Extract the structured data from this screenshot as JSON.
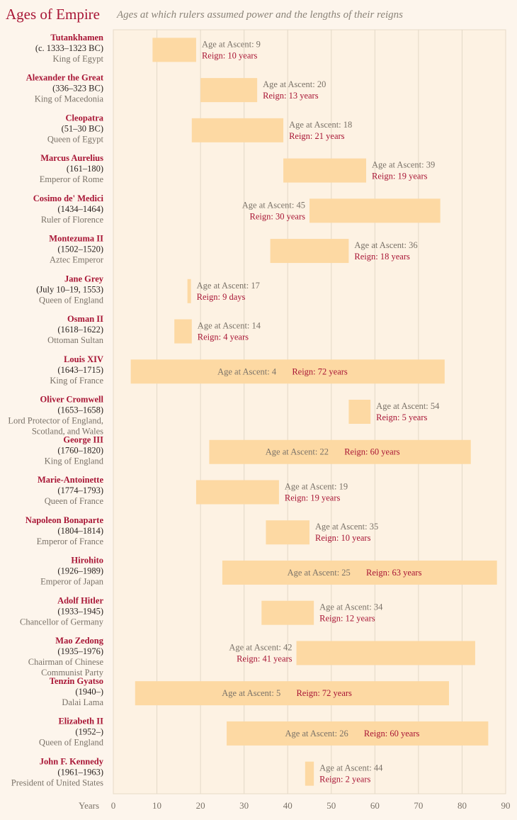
{
  "title": "Ages of Empire",
  "subtitle": "Ages at which rulers assumed power and the lengths of their reigns",
  "chart_data": {
    "type": "bar",
    "orientation": "horizontal-floating",
    "xlabel": "Years",
    "xlim": [
      0,
      90
    ],
    "xticks": [
      "0",
      "10",
      "20",
      "30",
      "40",
      "50",
      "60",
      "70",
      "80",
      "90"
    ],
    "grid": true,
    "bar_color": "#fdd9a3",
    "name_color": "#a81535",
    "series": [
      {
        "name": "Tutankhamen",
        "dates": "(c. 1333–1323 BC)",
        "role": "King of Egypt",
        "ascent": 9,
        "reign": 10,
        "ascent_text": "Age at Ascent: 9",
        "reign_text": "Reign: 10 years"
      },
      {
        "name": "Alexander the Great",
        "dates": "(336–323 BC)",
        "role": "King of Macedonia",
        "ascent": 20,
        "reign": 13,
        "ascent_text": "Age at Ascent: 20",
        "reign_text": "Reign: 13 years"
      },
      {
        "name": "Cleopatra",
        "dates": "(51–30 BC)",
        "role": "Queen of Egypt",
        "ascent": 18,
        "reign": 21,
        "ascent_text": "Age at Ascent: 18",
        "reign_text": "Reign: 21 years"
      },
      {
        "name": "Marcus Aurelius",
        "dates": "(161–180)",
        "role": "Emperor of Rome",
        "ascent": 39,
        "reign": 19,
        "ascent_text": "Age at Ascent: 39",
        "reign_text": "Reign: 19 years"
      },
      {
        "name": "Cosimo de' Medici",
        "dates": "(1434–1464)",
        "role": "Ruler of Florence",
        "ascent": 45,
        "reign": 30,
        "ascent_text": "Age at Ascent: 45",
        "reign_text": "Reign: 30 years"
      },
      {
        "name": "Montezuma II",
        "dates": "(1502–1520)",
        "role": "Aztec Emperor",
        "ascent": 36,
        "reign": 18,
        "ascent_text": "Age at Ascent: 36",
        "reign_text": "Reign: 18 years"
      },
      {
        "name": "Jane Grey",
        "dates": "(July 10–19, 1553)",
        "role": "Queen of England",
        "ascent": 17,
        "reign": 0.025,
        "ascent_text": "Age at Ascent: 17",
        "reign_text": "Reign: 9 days"
      },
      {
        "name": "Osman II",
        "dates": "(1618–1622)",
        "role": "Ottoman Sultan",
        "ascent": 14,
        "reign": 4,
        "ascent_text": "Age at Ascent: 14",
        "reign_text": "Reign: 4 years"
      },
      {
        "name": "Louis XIV",
        "dates": "(1643–1715)",
        "role": "King of France",
        "ascent": 4,
        "reign": 72,
        "ascent_text": "Age at Ascent: 4",
        "reign_text": "Reign: 72 years"
      },
      {
        "name": "Oliver Cromwell",
        "dates": "(1653–1658)",
        "role": "Lord Protector of England,|Scotland, and Wales",
        "ascent": 54,
        "reign": 5,
        "ascent_text": "Age at Ascent: 54",
        "reign_text": "Reign: 5 years"
      },
      {
        "name": "George III",
        "dates": "(1760–1820)",
        "role": "King of England",
        "ascent": 22,
        "reign": 60,
        "ascent_text": "Age at Ascent: 22",
        "reign_text": "Reign: 60  years"
      },
      {
        "name": "Marie-Antoinette",
        "dates": "(1774–1793)",
        "role": "Queen of France",
        "ascent": 19,
        "reign": 19,
        "ascent_text": "Age at Ascent: 19",
        "reign_text": "Reign: 19 years"
      },
      {
        "name": "Napoleon Bonaparte",
        "dates": "(1804–1814)",
        "role": "Emperor of France",
        "ascent": 35,
        "reign": 10,
        "ascent_text": "Age at Ascent: 35",
        "reign_text": "Reign: 10 years"
      },
      {
        "name": "Hirohito",
        "dates": "(1926–1989)",
        "role": "Emperor of Japan",
        "ascent": 25,
        "reign": 63,
        "ascent_text": "Age at Ascent: 25",
        "reign_text": "Reign: 63 years"
      },
      {
        "name": "Adolf Hitler",
        "dates": "(1933–1945)",
        "role": "Chancellor of Germany",
        "ascent": 34,
        "reign": 12,
        "ascent_text": "Age at Ascent: 34",
        "reign_text": "Reign: 12 years"
      },
      {
        "name": "Mao Zedong",
        "dates": "(1935–1976)",
        "role": "Chairman of Chinese|Communist Party",
        "ascent": 42,
        "reign": 41,
        "ascent_text": "Age at Ascent: 42",
        "reign_text": "Reign: 41 years"
      },
      {
        "name": "Tenzin Gyatso",
        "dates": "(1940–)",
        "role": "Dalai Lama",
        "ascent": 5,
        "reign": 72,
        "ascent_text": "Age at Ascent: 5",
        "reign_text": "Reign: 72 years"
      },
      {
        "name": "Elizabeth II",
        "dates": "(1952–)",
        "role": "Queen of England",
        "ascent": 26,
        "reign": 60,
        "ascent_text": "Age at Ascent: 26",
        "reign_text": "Reign: 60 years"
      },
      {
        "name": "John F. Kennedy",
        "dates": "(1961–1963)",
        "role": "President of United States",
        "ascent": 44,
        "reign": 2,
        "ascent_text": "Age at Ascent: 44",
        "reign_text": "Reign: 2 years"
      }
    ]
  }
}
